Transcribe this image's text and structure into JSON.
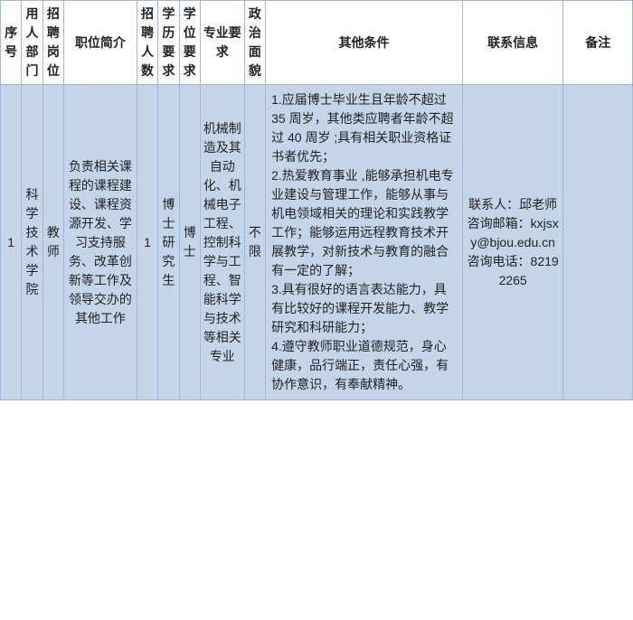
{
  "headers": {
    "seq": "序号",
    "dept": "用人部门",
    "post": "招聘岗位",
    "intro": "职位简介",
    "num": "招聘人数",
    "edu": "学历要求",
    "degree": "学位要求",
    "major": "专业要求",
    "pol": "政治面貌",
    "other": "其他条件",
    "contact": "联系信息",
    "remark": "备注"
  },
  "row": {
    "seq": "1",
    "dept": "科学技术学院",
    "post": "教师",
    "intro": "负责相关课程的课程建设、课程资源开发、学习支持服务、改革创新等工作及领导交办的其他工作",
    "num": "1",
    "edu": "博士研究生",
    "degree": "博士",
    "major": "机械制造及其自动化、机械电子工程、控制科学与工程、智能科学与技术等相关专业",
    "pol": "不限",
    "other": "1.应届博士毕业生且年龄不超过 35 周岁，其他类应聘者年龄不超过 40 周岁 ;具有相关职业资格证书者优先；\n2.热爱教育事业 ,能够承担机电专业建设与管理工作，能够从事与机电领域相关的理论和实践教学工作；能够运用远程教育技术开展教学，对新技术与教育的融合有一定的了解；\n3.具有很好的语言表达能力，具有比较好的课程开发能力、教学研究和科研能力；\n4.遵守教师职业道德规范，身心健康，品行端正，责任心强，有协作意识，有奉献精神。",
    "contact": "联系人：邱老师 咨询邮箱：kxjsxy@bjou.edu.cn\n咨询电话：82192265",
    "remark": ""
  }
}
